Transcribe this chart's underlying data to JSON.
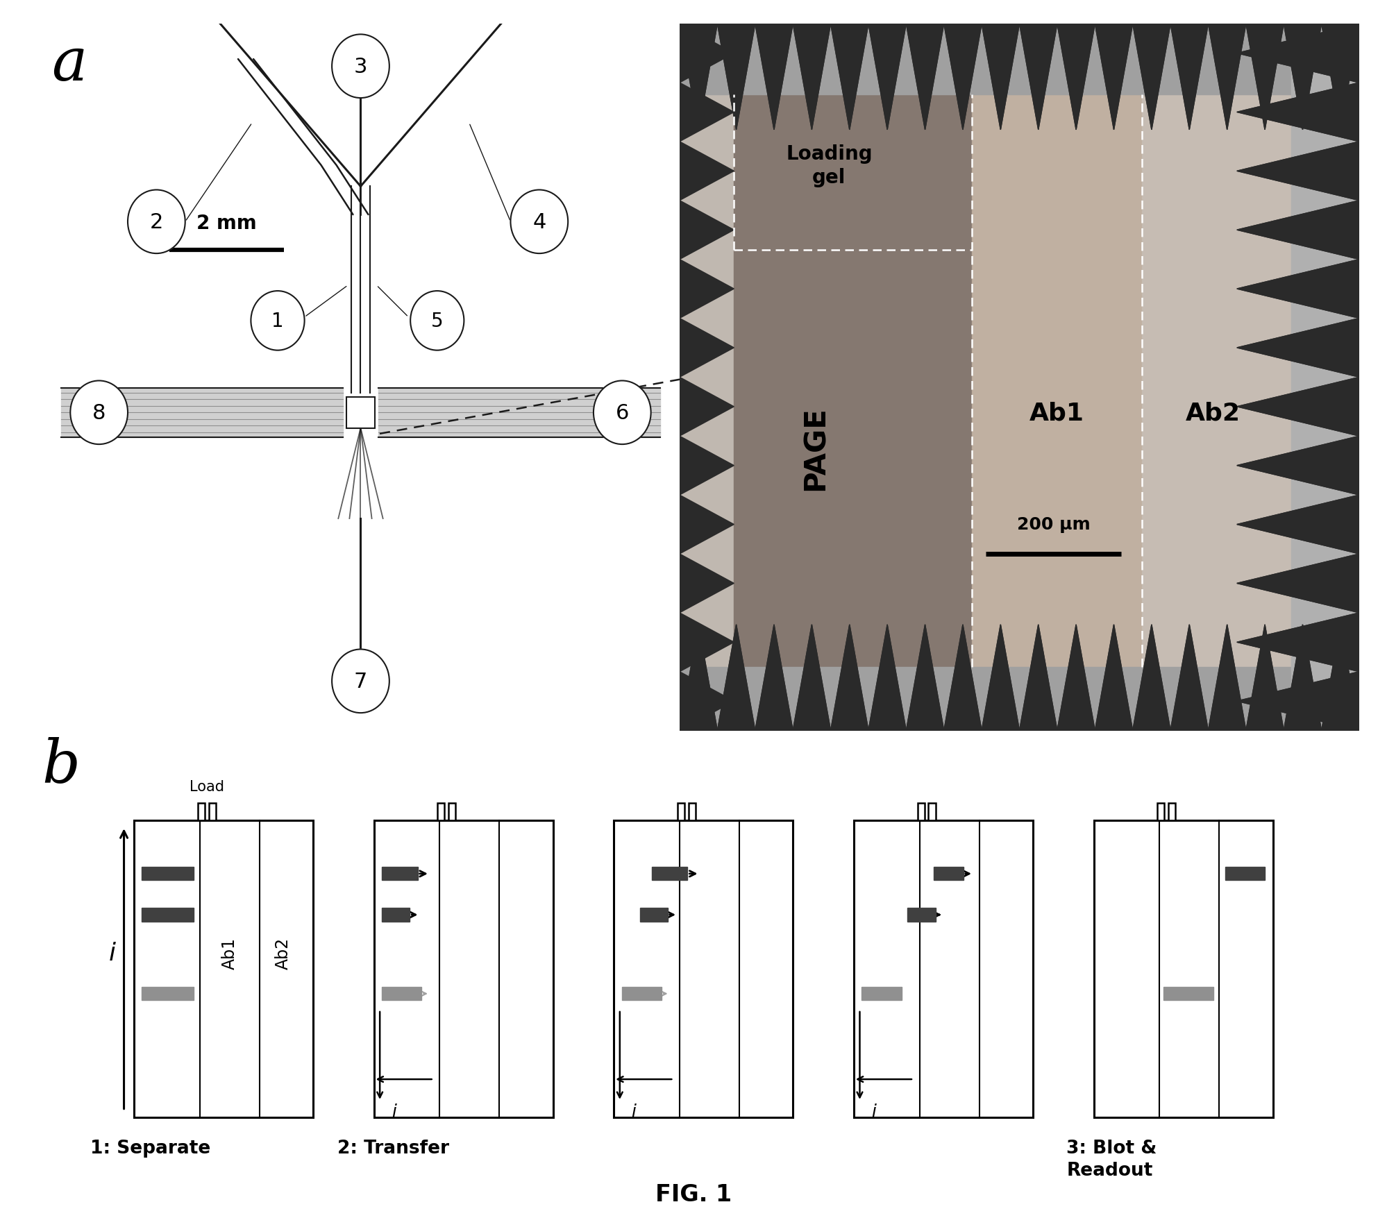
{
  "fig_width": 19.98,
  "fig_height": 17.56,
  "title": "FIG. 1",
  "panel_a_label": "a",
  "panel_b_label": "b",
  "scale_bar_2mm": "2 mm",
  "scale_bar_200um": "200 μm",
  "loading_gel_text": "Loading\ngel",
  "PAGE_text": "PAGE",
  "Ab1_text": "Ab1",
  "Ab2_text": "Ab2",
  "step1_label": "1: Separate",
  "step2_label": "2: Transfer",
  "step3_label": "3: Blot &\nReadout",
  "load_text": "Load",
  "i_text": "i",
  "bg_color": "#ffffff",
  "micro_bg_color": "#b8a898",
  "micro_page_color": "#a09080",
  "micro_ab1_color": "#c0b0a0",
  "micro_ab2_color": "#c8b8a8",
  "micro_teeth_color": "#2a2a2a",
  "band_dark": "#404040",
  "band_gray": "#909090",
  "device_line_color": "#1a1a1a",
  "horizontal_gray": "#b0b0b0"
}
